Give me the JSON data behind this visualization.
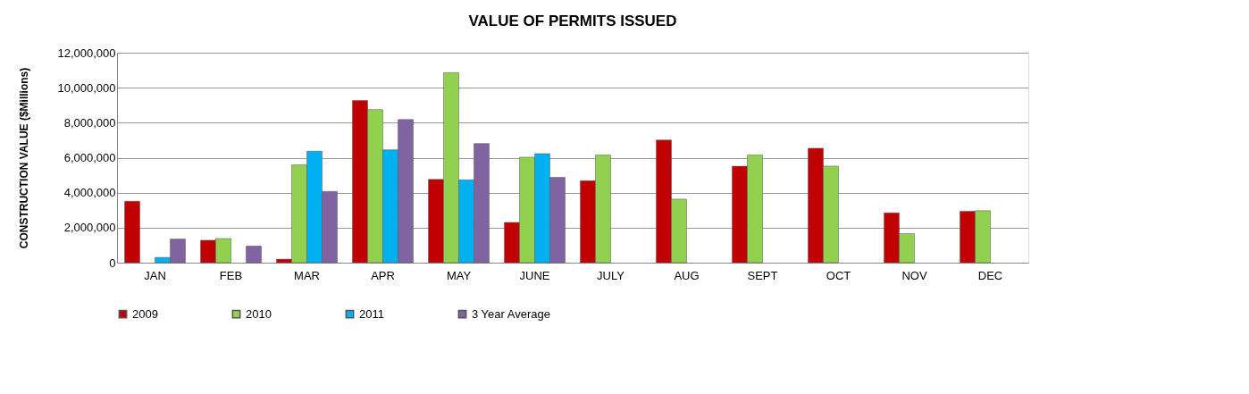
{
  "chart_data": {
    "type": "bar",
    "title": "VALUE OF PERMITS ISSUED",
    "ylabel": "CONSTRUCTION VALUE ($Millions)",
    "categories": [
      "JAN",
      "FEB",
      "MAR",
      "APR",
      "MAY",
      "JUNE",
      "JULY",
      "AUG",
      "SEPT",
      "OCT",
      "NOV",
      "DEC"
    ],
    "series": [
      {
        "name": "2009",
        "color": "#c00000",
        "values": [
          3510000,
          1280000,
          200000,
          9270000,
          4760000,
          2300000,
          4680000,
          7010000,
          5510000,
          6540000,
          2850000,
          2940000
        ]
      },
      {
        "name": "2010",
        "color": "#92d050",
        "values": [
          null,
          1380000,
          5590000,
          8750000,
          10860000,
          6030000,
          6150000,
          3630000,
          6150000,
          5520000,
          1660000,
          2970000
        ]
      },
      {
        "name": "2011",
        "color": "#00b0f0",
        "values": [
          300000,
          null,
          6370000,
          6450000,
          4730000,
          6230000,
          null,
          null,
          null,
          null,
          null,
          null
        ]
      },
      {
        "name": "3 Year Average",
        "color": "#8064a2",
        "values": [
          1350000,
          950000,
          4070000,
          8180000,
          6810000,
          4880000,
          null,
          null,
          null,
          null,
          null,
          null
        ]
      }
    ],
    "ylim": [
      0,
      12000000
    ],
    "yticks": [
      0,
      {
        "value": 2000000,
        "label": "2,000,000"
      },
      {
        "value": 4000000,
        "label": "4,000,000"
      },
      {
        "value": 6000000,
        "label": "6,000,000"
      },
      {
        "value": 8000000,
        "label": "8,000,000"
      },
      {
        "value": 10000000,
        "label": "10,000,000"
      },
      {
        "value": 12000000,
        "label": "12,000,000"
      }
    ],
    "grid": "y",
    "legend": "bottom"
  }
}
